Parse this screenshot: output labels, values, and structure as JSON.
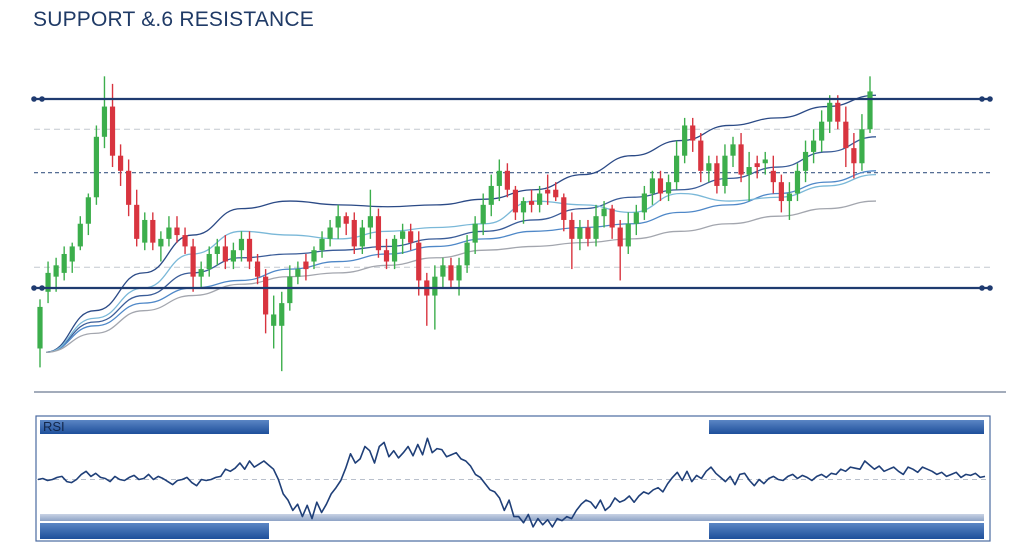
{
  "chart_data": [
    {
      "type": "candlestick",
      "title": "SUPPORT &.6 RESISTANCE",
      "xlabel": "",
      "ylabel": "",
      "grid": false,
      "resistance_level": 100,
      "support_level": 0,
      "dashed_levels": [
        84,
        61,
        11
      ],
      "ylim": [
        -40,
        113
      ],
      "candles": [
        {
          "o": -10,
          "h": -6,
          "l": -42,
          "c": -32,
          "d": "up"
        },
        {
          "o": -2,
          "h": 14,
          "l": -8,
          "c": 8,
          "d": "up"
        },
        {
          "o": 12,
          "h": 16,
          "l": -2,
          "c": 6,
          "d": "up"
        },
        {
          "o": 8,
          "h": 22,
          "l": 4,
          "c": 18,
          "d": "up"
        },
        {
          "o": 14,
          "h": 24,
          "l": 8,
          "c": 22,
          "d": "up"
        },
        {
          "o": 22,
          "h": 38,
          "l": 20,
          "c": 34,
          "d": "up"
        },
        {
          "o": 34,
          "h": 50,
          "l": 28,
          "c": 48,
          "d": "up"
        },
        {
          "o": 48,
          "h": 86,
          "l": 44,
          "c": 80,
          "d": "up"
        },
        {
          "o": 80,
          "h": 112,
          "l": 74,
          "c": 96,
          "d": "up"
        },
        {
          "o": 96,
          "h": 108,
          "l": 64,
          "c": 70,
          "d": "down"
        },
        {
          "o": 70,
          "h": 76,
          "l": 54,
          "c": 62,
          "d": "down"
        },
        {
          "o": 62,
          "h": 68,
          "l": 38,
          "c": 44,
          "d": "down"
        },
        {
          "o": 44,
          "h": 52,
          "l": 22,
          "c": 26,
          "d": "down"
        },
        {
          "o": 24,
          "h": 40,
          "l": 20,
          "c": 36,
          "d": "up"
        },
        {
          "o": 36,
          "h": 40,
          "l": 20,
          "c": 24,
          "d": "down"
        },
        {
          "o": 22,
          "h": 30,
          "l": 14,
          "c": 26,
          "d": "up"
        },
        {
          "o": 26,
          "h": 38,
          "l": 22,
          "c": 32,
          "d": "up"
        },
        {
          "o": 32,
          "h": 38,
          "l": 24,
          "c": 28,
          "d": "down"
        },
        {
          "o": 28,
          "h": 32,
          "l": 18,
          "c": 22,
          "d": "down"
        },
        {
          "o": 22,
          "h": 26,
          "l": -2,
          "c": 6,
          "d": "down"
        },
        {
          "o": 6,
          "h": 14,
          "l": 0,
          "c": 10,
          "d": "up"
        },
        {
          "o": 10,
          "h": 22,
          "l": 6,
          "c": 18,
          "d": "up"
        },
        {
          "o": 18,
          "h": 26,
          "l": 12,
          "c": 22,
          "d": "up"
        },
        {
          "o": 22,
          "h": 28,
          "l": 10,
          "c": 14,
          "d": "down"
        },
        {
          "o": 14,
          "h": 24,
          "l": 10,
          "c": 20,
          "d": "up"
        },
        {
          "o": 20,
          "h": 30,
          "l": 14,
          "c": 26,
          "d": "up"
        },
        {
          "o": 26,
          "h": 30,
          "l": 10,
          "c": 14,
          "d": "down"
        },
        {
          "o": 14,
          "h": 18,
          "l": 2,
          "c": 6,
          "d": "down"
        },
        {
          "o": 6,
          "h": 10,
          "l": -24,
          "c": -14,
          "d": "down"
        },
        {
          "o": -14,
          "h": -4,
          "l": -32,
          "c": -20,
          "d": "up"
        },
        {
          "o": -20,
          "h": -2,
          "l": -44,
          "c": -8,
          "d": "up"
        },
        {
          "o": -8,
          "h": 12,
          "l": -12,
          "c": 6,
          "d": "up"
        },
        {
          "o": 6,
          "h": 14,
          "l": 2,
          "c": 10,
          "d": "up"
        },
        {
          "o": 10,
          "h": 18,
          "l": 4,
          "c": 14,
          "d": "down"
        },
        {
          "o": 14,
          "h": 22,
          "l": 10,
          "c": 20,
          "d": "up"
        },
        {
          "o": 20,
          "h": 30,
          "l": 16,
          "c": 26,
          "d": "up"
        },
        {
          "o": 26,
          "h": 36,
          "l": 22,
          "c": 32,
          "d": "up"
        },
        {
          "o": 32,
          "h": 44,
          "l": 26,
          "c": 38,
          "d": "up"
        },
        {
          "o": 38,
          "h": 40,
          "l": 28,
          "c": 34,
          "d": "down"
        },
        {
          "o": 36,
          "h": 40,
          "l": 18,
          "c": 22,
          "d": "down"
        },
        {
          "o": 22,
          "h": 36,
          "l": 18,
          "c": 32,
          "d": "up"
        },
        {
          "o": 32,
          "h": 52,
          "l": 26,
          "c": 38,
          "d": "up"
        },
        {
          "o": 38,
          "h": 42,
          "l": 16,
          "c": 20,
          "d": "down"
        },
        {
          "o": 20,
          "h": 26,
          "l": 10,
          "c": 14,
          "d": "down"
        },
        {
          "o": 14,
          "h": 28,
          "l": 10,
          "c": 26,
          "d": "up"
        },
        {
          "o": 26,
          "h": 34,
          "l": 18,
          "c": 30,
          "d": "up"
        },
        {
          "o": 30,
          "h": 34,
          "l": 20,
          "c": 24,
          "d": "down"
        },
        {
          "o": 24,
          "h": 30,
          "l": -4,
          "c": 4,
          "d": "down"
        },
        {
          "o": 4,
          "h": 8,
          "l": -20,
          "c": -4,
          "d": "down"
        },
        {
          "o": -4,
          "h": 12,
          "l": -22,
          "c": 6,
          "d": "up"
        },
        {
          "o": 6,
          "h": 16,
          "l": 0,
          "c": 12,
          "d": "up"
        },
        {
          "o": 12,
          "h": 16,
          "l": 0,
          "c": 4,
          "d": "down"
        },
        {
          "o": 4,
          "h": 16,
          "l": -4,
          "c": 12,
          "d": "up"
        },
        {
          "o": 12,
          "h": 28,
          "l": 8,
          "c": 24,
          "d": "up"
        },
        {
          "o": 24,
          "h": 38,
          "l": 18,
          "c": 34,
          "d": "up"
        },
        {
          "o": 34,
          "h": 50,
          "l": 28,
          "c": 44,
          "d": "up"
        },
        {
          "o": 44,
          "h": 60,
          "l": 38,
          "c": 54,
          "d": "up"
        },
        {
          "o": 54,
          "h": 68,
          "l": 46,
          "c": 62,
          "d": "up"
        },
        {
          "o": 62,
          "h": 66,
          "l": 48,
          "c": 52,
          "d": "down"
        },
        {
          "o": 52,
          "h": 54,
          "l": 36,
          "c": 40,
          "d": "down"
        },
        {
          "o": 40,
          "h": 48,
          "l": 34,
          "c": 46,
          "d": "up"
        },
        {
          "o": 46,
          "h": 52,
          "l": 40,
          "c": 44,
          "d": "down"
        },
        {
          "o": 44,
          "h": 54,
          "l": 40,
          "c": 50,
          "d": "up"
        },
        {
          "o": 50,
          "h": 60,
          "l": 44,
          "c": 52,
          "d": "down"
        },
        {
          "o": 52,
          "h": 56,
          "l": 46,
          "c": 48,
          "d": "down"
        },
        {
          "o": 48,
          "h": 50,
          "l": 30,
          "c": 36,
          "d": "down"
        },
        {
          "o": 36,
          "h": 40,
          "l": 10,
          "c": 26,
          "d": "down"
        },
        {
          "o": 26,
          "h": 36,
          "l": 20,
          "c": 32,
          "d": "up"
        },
        {
          "o": 32,
          "h": 36,
          "l": 22,
          "c": 26,
          "d": "down"
        },
        {
          "o": 26,
          "h": 44,
          "l": 22,
          "c": 38,
          "d": "up"
        },
        {
          "o": 38,
          "h": 46,
          "l": 32,
          "c": 42,
          "d": "up"
        },
        {
          "o": 42,
          "h": 44,
          "l": 26,
          "c": 32,
          "d": "down"
        },
        {
          "o": 32,
          "h": 36,
          "l": 4,
          "c": 22,
          "d": "down"
        },
        {
          "o": 22,
          "h": 40,
          "l": 18,
          "c": 34,
          "d": "up"
        },
        {
          "o": 34,
          "h": 44,
          "l": 28,
          "c": 40,
          "d": "up"
        },
        {
          "o": 40,
          "h": 54,
          "l": 36,
          "c": 50,
          "d": "up"
        },
        {
          "o": 50,
          "h": 62,
          "l": 44,
          "c": 58,
          "d": "up"
        },
        {
          "o": 58,
          "h": 62,
          "l": 46,
          "c": 50,
          "d": "down"
        },
        {
          "o": 50,
          "h": 60,
          "l": 46,
          "c": 56,
          "d": "up"
        },
        {
          "o": 56,
          "h": 78,
          "l": 52,
          "c": 70,
          "d": "up"
        },
        {
          "o": 70,
          "h": 90,
          "l": 66,
          "c": 86,
          "d": "up"
        },
        {
          "o": 86,
          "h": 90,
          "l": 72,
          "c": 78,
          "d": "down"
        },
        {
          "o": 78,
          "h": 82,
          "l": 56,
          "c": 62,
          "d": "down"
        },
        {
          "o": 62,
          "h": 70,
          "l": 56,
          "c": 66,
          "d": "up"
        },
        {
          "o": 66,
          "h": 70,
          "l": 50,
          "c": 54,
          "d": "down"
        },
        {
          "o": 54,
          "h": 76,
          "l": 50,
          "c": 70,
          "d": "up"
        },
        {
          "o": 70,
          "h": 80,
          "l": 64,
          "c": 76,
          "d": "up"
        },
        {
          "o": 76,
          "h": 82,
          "l": 56,
          "c": 60,
          "d": "down"
        },
        {
          "o": 60,
          "h": 72,
          "l": 46,
          "c": 64,
          "d": "up"
        },
        {
          "o": 64,
          "h": 70,
          "l": 58,
          "c": 66,
          "d": "down"
        },
        {
          "o": 66,
          "h": 72,
          "l": 60,
          "c": 68,
          "d": "up"
        },
        {
          "o": 62,
          "h": 70,
          "l": 50,
          "c": 56,
          "d": "down"
        },
        {
          "o": 56,
          "h": 60,
          "l": 40,
          "c": 46,
          "d": "down"
        },
        {
          "o": 46,
          "h": 56,
          "l": 36,
          "c": 50,
          "d": "up"
        },
        {
          "o": 50,
          "h": 66,
          "l": 46,
          "c": 62,
          "d": "up"
        },
        {
          "o": 62,
          "h": 78,
          "l": 56,
          "c": 72,
          "d": "up"
        },
        {
          "o": 72,
          "h": 84,
          "l": 66,
          "c": 78,
          "d": "up"
        },
        {
          "o": 78,
          "h": 94,
          "l": 72,
          "c": 88,
          "d": "up"
        },
        {
          "o": 88,
          "h": 102,
          "l": 82,
          "c": 98,
          "d": "up"
        },
        {
          "o": 98,
          "h": 102,
          "l": 84,
          "c": 88,
          "d": "down"
        },
        {
          "o": 88,
          "h": 96,
          "l": 64,
          "c": 74,
          "d": "down"
        },
        {
          "o": 74,
          "h": 82,
          "l": 58,
          "c": 66,
          "d": "down"
        },
        {
          "o": 66,
          "h": 92,
          "l": 62,
          "c": 84,
          "d": "up"
        },
        {
          "o": 84,
          "h": 112,
          "l": 82,
          "c": 104,
          "d": "up"
        }
      ],
      "moving_averages": [
        {
          "color": "#2b4a86",
          "values": [
            -34,
            -12,
            8,
            28,
            42,
            46,
            44,
            43,
            44,
            47,
            52,
            60,
            70,
            78,
            86,
            90,
            96,
            102
          ]
        },
        {
          "color": "#3a5c98",
          "values": [
            -34,
            -18,
            -4,
            8,
            16,
            18,
            20,
            22,
            26,
            30,
            36,
            42,
            48,
            52,
            58,
            64,
            72,
            80
          ]
        },
        {
          "color": "#4f88c8",
          "values": [
            -34,
            -20,
            -8,
            0,
            4,
            10,
            14,
            18,
            22,
            26,
            30,
            32,
            34,
            40,
            44,
            50,
            56,
            62
          ]
        },
        {
          "color": "#7ab8d8",
          "values": [
            -34,
            -16,
            0,
            18,
            30,
            28,
            26,
            30,
            32,
            34,
            46,
            44,
            40,
            50,
            46,
            48,
            54,
            60
          ]
        },
        {
          "color": "#a3a6ae",
          "values": [
            -34,
            -24,
            -12,
            -4,
            2,
            6,
            8,
            12,
            16,
            20,
            22,
            24,
            26,
            30,
            34,
            38,
            42,
            46
          ]
        }
      ]
    },
    {
      "type": "line",
      "title": "RSI",
      "ylim": [
        0,
        100
      ],
      "upper_level": 50,
      "lower_level": 14,
      "series": [
        {
          "values": [
            50,
            51,
            49,
            50,
            52,
            53,
            48,
            47,
            50,
            55,
            58,
            53,
            56,
            52,
            51,
            48,
            53,
            50,
            49,
            52,
            54,
            50,
            51,
            55,
            50,
            53,
            51,
            48,
            45,
            49,
            50,
            52,
            47,
            44,
            50,
            49,
            50,
            52,
            53,
            60,
            58,
            61,
            66,
            60,
            68,
            62,
            65,
            68,
            64,
            60,
            50,
            36,
            30,
            20,
            26,
            14,
            25,
            12,
            28,
            18,
            26,
            36,
            42,
            49,
            61,
            75,
            66,
            70,
            82,
            78,
            66,
            82,
            86,
            72,
            78,
            71,
            76,
            82,
            73,
            84,
            74,
            90,
            76,
            80,
            79,
            72,
            74,
            76,
            70,
            68,
            63,
            55,
            52,
            46,
            40,
            38,
            32,
            20,
            30,
            14,
            14,
            8,
            16,
            4,
            12,
            6,
            11,
            4,
            12,
            10,
            14,
            12,
            20,
            26,
            30,
            28,
            22,
            30,
            20,
            24,
            32,
            28,
            30,
            34,
            28,
            34,
            38,
            36,
            40,
            42,
            38,
            46,
            52,
            57,
            49,
            58,
            48,
            54,
            51,
            58,
            62,
            56,
            52,
            48,
            53,
            45,
            55,
            56,
            49,
            44,
            50,
            46,
            51,
            53,
            50,
            49,
            53,
            55,
            51,
            54,
            52,
            49,
            53,
            55,
            52,
            56,
            55,
            60,
            58,
            62,
            61,
            60,
            68,
            64,
            60,
            63,
            58,
            60,
            62,
            58,
            55,
            62,
            60,
            57,
            62,
            60,
            58,
            55,
            57,
            53,
            55,
            57,
            52,
            55,
            54,
            56,
            52,
            53
          ]
        }
      ]
    }
  ]
}
